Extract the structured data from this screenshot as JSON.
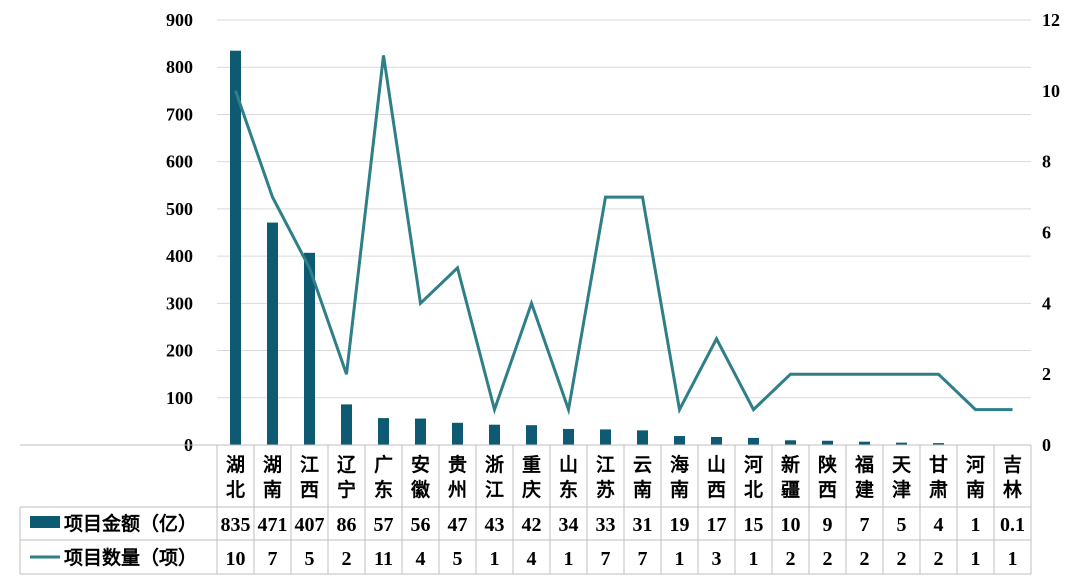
{
  "chart_data": {
    "type": "bar",
    "categories": [
      "湖北",
      "湖南",
      "江西",
      "辽宁",
      "广东",
      "安徽",
      "贵州",
      "浙江",
      "重庆",
      "山东",
      "江苏",
      "云南",
      "海南",
      "山西",
      "河北",
      "新疆",
      "陕西",
      "福建",
      "天津",
      "甘肃",
      "河南",
      "吉林"
    ],
    "series": [
      {
        "name": "项目金额（亿）",
        "type": "bar",
        "axis": "left",
        "color": "#0f5a73",
        "values": [
          835,
          471,
          407,
          86,
          57,
          56,
          47,
          43,
          42,
          34,
          33,
          31,
          19,
          17,
          15,
          10,
          9,
          7,
          5,
          4,
          1,
          0.1
        ],
        "labels": [
          "835",
          "471",
          "407",
          "86",
          "57",
          "56",
          "47",
          "43",
          "42",
          "34",
          "33",
          "31",
          "19",
          "17",
          "15",
          "10",
          "9",
          "7",
          "5",
          "4",
          "1",
          "0.1"
        ]
      },
      {
        "name": "项目数量（项）",
        "type": "line",
        "axis": "right",
        "color": "#2e7f87",
        "values": [
          10,
          7,
          5,
          2,
          11,
          4,
          5,
          1,
          4,
          1,
          7,
          7,
          1,
          3,
          1,
          2,
          2,
          2,
          2,
          2,
          1,
          1
        ],
        "labels": [
          "10",
          "7",
          "5",
          "2",
          "11",
          "4",
          "5",
          "1",
          "4",
          "1",
          "7",
          "7",
          "1",
          "3",
          "1",
          "2",
          "2",
          "2",
          "2",
          "2",
          "1",
          "1"
        ]
      }
    ],
    "y_left": {
      "min": 0,
      "max": 900,
      "ticks": [
        "0",
        "100",
        "200",
        "300",
        "400",
        "500",
        "600",
        "700",
        "800",
        "900"
      ]
    },
    "y_right": {
      "min": 0,
      "max": 12,
      "ticks": [
        "0",
        "2",
        "4",
        "6",
        "8",
        "10",
        "12"
      ]
    },
    "grid": true,
    "legend": "data-table-left"
  }
}
